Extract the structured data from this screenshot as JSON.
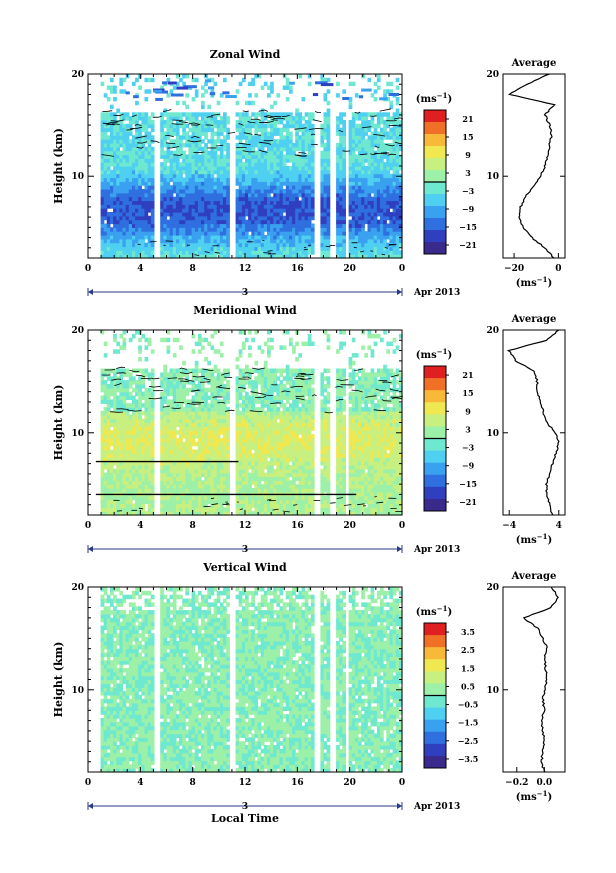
{
  "chart_data": [
    {
      "type": "heatmap",
      "title": "Zonal Wind",
      "ylabel": "Height (km)",
      "ylim": [
        2,
        20
      ],
      "xlim": [
        0,
        24
      ],
      "x_ticks": [
        "0",
        "4",
        "8",
        "12",
        "16",
        "20",
        "0"
      ],
      "y_ticks": [
        "20",
        "10"
      ],
      "date_label": "3",
      "month_label": "Apr 2013",
      "colorbar": {
        "unit": "(ms",
        "unit_exp": "−1",
        "ticks": [
          "21",
          "15",
          "9",
          "3",
          "−3",
          "−9",
          "−15",
          "−21"
        ],
        "range": [
          -24,
          24
        ]
      },
      "side_profile": {
        "title": "Average",
        "xlabel": "(ms",
        "xlabel_exp": "−1",
        "x_ticks": [
          "−20",
          "0"
        ],
        "xlim": [
          -25,
          3
        ],
        "y_ticks": [
          "20",
          "10"
        ],
        "height_km": [
          2,
          3,
          4,
          5,
          6,
          7,
          8,
          9,
          10,
          11,
          12,
          13,
          14,
          15,
          16,
          17,
          18,
          19,
          20
        ],
        "values": [
          -2,
          -6,
          -12,
          -16,
          -18,
          -17,
          -15,
          -11,
          -8,
          -6,
          -5,
          -4,
          -3,
          -4,
          -6,
          -2,
          -22,
          -14,
          -4
        ]
      }
    },
    {
      "type": "heatmap",
      "title": "Meridional Wind",
      "ylabel": "Height (km)",
      "ylim": [
        2,
        20
      ],
      "xlim": [
        0,
        24
      ],
      "x_ticks": [
        "0",
        "4",
        "8",
        "12",
        "16",
        "20",
        "0"
      ],
      "y_ticks": [
        "20",
        "10"
      ],
      "date_label": "3",
      "month_label": "Apr 2013",
      "colorbar": {
        "unit": "(ms",
        "unit_exp": "−1",
        "ticks": [
          "21",
          "15",
          "9",
          "3",
          "−3",
          "−9",
          "−15",
          "−21"
        ],
        "range": [
          -24,
          24
        ]
      },
      "side_profile": {
        "title": "Average",
        "xlabel": "(ms",
        "xlabel_exp": "−1",
        "x_ticks": [
          "−4",
          "4"
        ],
        "xlim": [
          -5,
          5
        ],
        "y_ticks": [
          "20",
          "10"
        ],
        "height_km": [
          2,
          3,
          4,
          5,
          6,
          7,
          8,
          9,
          10,
          11,
          12,
          13,
          14,
          15,
          16,
          17,
          18,
          19,
          20
        ],
        "values": [
          3,
          2.5,
          2,
          2,
          2.5,
          3,
          3.5,
          4,
          3.5,
          2,
          1.5,
          1,
          0.5,
          0.5,
          0,
          -3,
          -4,
          2,
          4
        ]
      }
    },
    {
      "type": "heatmap",
      "title": "Vertical Wind",
      "ylabel": "Height (km)",
      "xlabel": "Local Time",
      "ylim": [
        2,
        20
      ],
      "xlim": [
        0,
        24
      ],
      "x_ticks": [
        "0",
        "4",
        "8",
        "12",
        "16",
        "20",
        "0"
      ],
      "y_ticks": [
        "20",
        "10"
      ],
      "date_label": "3",
      "month_label": "Apr 2013",
      "colorbar": {
        "unit": "(ms",
        "unit_exp": "−1",
        "ticks": [
          "3.5",
          "2.5",
          "1.5",
          "0.5",
          "−0.5",
          "−1.5",
          "−2.5",
          "−3.5"
        ],
        "range": [
          -4,
          4
        ]
      },
      "side_profile": {
        "title": "Average",
        "xlabel": "(ms",
        "xlabel_exp": "−1",
        "x_ticks": [
          "−0.2",
          "0.0"
        ],
        "xlim": [
          -0.3,
          0.15
        ],
        "y_ticks": [
          "20",
          "10"
        ],
        "height_km": [
          2,
          3,
          4,
          5,
          6,
          7,
          8,
          9,
          10,
          11,
          12,
          13,
          14,
          15,
          16,
          17,
          18,
          19,
          20
        ],
        "values": [
          0.0,
          -0.02,
          -0.01,
          0.0,
          -0.01,
          -0.02,
          0.0,
          -0.01,
          0.0,
          0.02,
          0.01,
          0.0,
          0.02,
          -0.01,
          -0.05,
          -0.15,
          0.05,
          0.1,
          0.05
        ]
      }
    }
  ],
  "palette": [
    "#3a2a8c",
    "#2f3fc0",
    "#2f6fe0",
    "#3aa0f0",
    "#4fd0f0",
    "#6fe8d0",
    "#9cf0a8",
    "#c8f080",
    "#f0e850",
    "#f8b838",
    "#f07028",
    "#e02020"
  ]
}
